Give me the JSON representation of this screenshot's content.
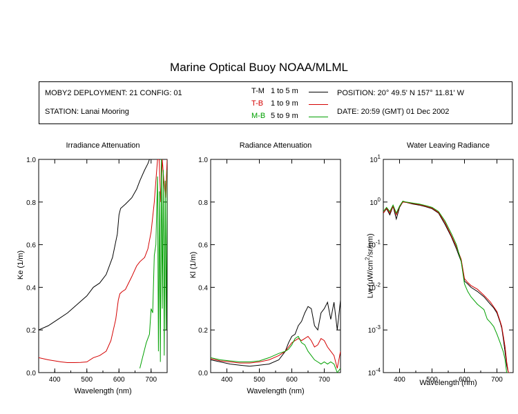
{
  "title": "Marine Optical Buoy NOAA/MLML",
  "info": {
    "deployment": "MOBY2 DEPLOYMENT: 21 CONFIG: 01",
    "station": "STATION: Lanai Mooring",
    "position": "POSITION: 20° 49.5' N  157° 11.81' W",
    "date": "DATE: 20:59 (GMT) 01 Dec 2002"
  },
  "legend": [
    {
      "code": "T-M",
      "range": "1 to 5  m",
      "color": "#000000"
    },
    {
      "code": "T-B",
      "range": "1 to 9  m",
      "color": "#d40000"
    },
    {
      "code": "M-B",
      "range": "5 to 9  m",
      "color": "#00a000"
    }
  ],
  "chart_data": [
    {
      "type": "line",
      "title": "Irradiance Attenuation",
      "xlabel": "Wavelength (nm)",
      "ylabel": "Ke  (1/m)",
      "xlim": [
        350,
        750
      ],
      "ylim": [
        0,
        1
      ],
      "xticks": [
        "400",
        "500",
        "600",
        "700"
      ],
      "yticks": [
        "0.0",
        "0.2",
        "0.4",
        "0.6",
        "0.8",
        "1.0"
      ],
      "series": [
        {
          "name": "T-M",
          "color": "#000000",
          "x": [
            350,
            380,
            410,
            440,
            470,
            500,
            520,
            540,
            560,
            580,
            595,
            600,
            605,
            620,
            640,
            655,
            665,
            680,
            690,
            695,
            700
          ],
          "y": [
            0.2,
            0.22,
            0.25,
            0.28,
            0.32,
            0.36,
            0.4,
            0.42,
            0.46,
            0.54,
            0.65,
            0.74,
            0.77,
            0.79,
            0.82,
            0.86,
            0.9,
            0.95,
            0.98,
            1.0,
            1.0
          ]
        },
        {
          "name": "T-B",
          "color": "#d40000",
          "x": [
            350,
            380,
            400,
            420,
            440,
            460,
            480,
            500,
            520,
            540,
            560,
            575,
            590,
            598,
            603,
            610,
            620,
            640,
            655,
            665,
            680,
            690,
            700,
            710,
            715,
            720,
            725,
            730,
            735,
            740,
            745,
            750
          ],
          "y": [
            0.07,
            0.06,
            0.055,
            0.05,
            0.047,
            0.047,
            0.048,
            0.05,
            0.07,
            0.08,
            0.1,
            0.15,
            0.25,
            0.34,
            0.37,
            0.38,
            0.39,
            0.45,
            0.5,
            0.52,
            0.54,
            0.58,
            0.66,
            0.8,
            0.9,
            1.0,
            1.0,
            0.8,
            1.0,
            0.9,
            0.82,
            1.0
          ]
        },
        {
          "name": "M-B",
          "color": "#00a000",
          "x": [
            665,
            675,
            685,
            695,
            700,
            705,
            710,
            715,
            720,
            723,
            726,
            729,
            732,
            735,
            738,
            741,
            744,
            747,
            750
          ],
          "y": [
            0.02,
            0.08,
            0.14,
            0.18,
            0.3,
            0.28,
            0.55,
            0.6,
            0.92,
            0.1,
            0.85,
            0.05,
            1.0,
            0.3,
            0.95,
            0.08,
            0.9,
            0.2,
            0.95
          ]
        }
      ]
    },
    {
      "type": "line",
      "title": "Radiance Attenuation",
      "xlabel": "Wavelength (nm)",
      "ylabel": "Kl  (1/m)",
      "xlim": [
        350,
        750
      ],
      "ylim": [
        0,
        1
      ],
      "xticks": [
        "400",
        "500",
        "600",
        "700"
      ],
      "yticks": [
        "0.0",
        "0.2",
        "0.4",
        "0.6",
        "0.8",
        "1.0"
      ],
      "series": [
        {
          "name": "T-M",
          "color": "#000000",
          "x": [
            350,
            380,
            410,
            440,
            470,
            500,
            530,
            560,
            580,
            590,
            600,
            610,
            620,
            630,
            640,
            650,
            660,
            670,
            680,
            690,
            700,
            710,
            720,
            730,
            740,
            750
          ],
          "y": [
            0.06,
            0.05,
            0.04,
            0.035,
            0.03,
            0.035,
            0.04,
            0.06,
            0.1,
            0.14,
            0.17,
            0.18,
            0.22,
            0.24,
            0.28,
            0.31,
            0.3,
            0.22,
            0.2,
            0.28,
            0.3,
            0.33,
            0.25,
            0.33,
            0.2,
            0.34
          ]
        },
        {
          "name": "T-B",
          "color": "#d40000",
          "x": [
            350,
            380,
            410,
            440,
            470,
            500,
            530,
            560,
            580,
            590,
            600,
            610,
            620,
            630,
            640,
            650,
            660,
            670,
            680,
            690,
            700,
            710,
            720,
            730,
            740,
            750
          ],
          "y": [
            0.065,
            0.055,
            0.05,
            0.045,
            0.045,
            0.05,
            0.06,
            0.08,
            0.1,
            0.12,
            0.14,
            0.15,
            0.16,
            0.15,
            0.16,
            0.17,
            0.15,
            0.12,
            0.13,
            0.16,
            0.15,
            0.12,
            0.1,
            0.08,
            0.02,
            0.1
          ]
        },
        {
          "name": "M-B",
          "color": "#00a000",
          "x": [
            350,
            380,
            410,
            440,
            470,
            500,
            530,
            560,
            580,
            590,
            600,
            610,
            620,
            630,
            640,
            650,
            660,
            670,
            680,
            690,
            700,
            710,
            720,
            730,
            740,
            750
          ],
          "y": [
            0.07,
            0.06,
            0.055,
            0.05,
            0.05,
            0.055,
            0.07,
            0.09,
            0.1,
            0.11,
            0.13,
            0.16,
            0.17,
            0.14,
            0.13,
            0.1,
            0.08,
            0.06,
            0.05,
            0.04,
            0.05,
            0.04,
            0.05,
            0.04,
            0.0,
            0.02
          ]
        }
      ]
    },
    {
      "type": "line",
      "title": "Water Leaving Radiance",
      "xlabel": "Wavelength (nm)",
      "ylabel": "Lw  (μW/cm²/sr/nm)",
      "yscale": "log",
      "xlim": [
        350,
        750
      ],
      "ylim": [
        0.0001,
        10
      ],
      "xticks": [
        "400",
        "500",
        "600",
        "700"
      ],
      "yticks": [
        "10^-4",
        "10^-3",
        "10^-2",
        "10^-1",
        "10^0",
        "10^1"
      ],
      "series": [
        {
          "name": "T-M",
          "color": "#000000",
          "x": [
            350,
            360,
            370,
            380,
            390,
            400,
            410,
            420,
            440,
            460,
            480,
            500,
            520,
            540,
            560,
            575,
            590,
            600,
            610,
            620,
            640,
            660,
            680,
            690,
            700,
            710,
            715,
            720,
            725,
            730,
            735,
            740
          ],
          "y": [
            0.55,
            0.7,
            0.5,
            0.8,
            0.4,
            0.75,
            1.0,
            0.98,
            0.9,
            0.85,
            0.78,
            0.7,
            0.55,
            0.3,
            0.15,
            0.08,
            0.04,
            0.014,
            0.012,
            0.01,
            0.008,
            0.006,
            0.004,
            0.0033,
            0.0025,
            0.0015,
            0.0011,
            0.0006,
            0.0003,
            0.00015,
            0.0001,
            0.0001
          ]
        },
        {
          "name": "T-B",
          "color": "#d40000",
          "x": [
            350,
            360,
            370,
            380,
            390,
            400,
            410,
            420,
            440,
            460,
            480,
            500,
            520,
            540,
            560,
            575,
            590,
            600,
            610,
            620,
            640,
            660,
            680,
            690,
            700,
            710,
            715,
            720,
            725,
            730,
            735,
            740
          ],
          "y": [
            0.55,
            0.72,
            0.55,
            0.8,
            0.5,
            0.78,
            1.0,
            0.98,
            0.92,
            0.87,
            0.8,
            0.72,
            0.57,
            0.33,
            0.16,
            0.09,
            0.045,
            0.016,
            0.013,
            0.011,
            0.009,
            0.0065,
            0.0045,
            0.0035,
            0.0027,
            0.0016,
            0.0012,
            0.0007,
            0.0004,
            0.00018,
            0.0001,
            0.0001
          ]
        },
        {
          "name": "M-B",
          "color": "#00a000",
          "x": [
            350,
            360,
            370,
            380,
            390,
            400,
            410,
            420,
            440,
            460,
            480,
            500,
            520,
            540,
            560,
            575,
            590,
            600,
            610,
            620,
            640,
            660,
            670,
            680,
            690,
            700,
            710,
            720,
            725,
            730,
            735
          ],
          "y": [
            0.6,
            0.75,
            0.6,
            0.85,
            0.55,
            0.8,
            1.05,
            1.0,
            0.95,
            0.9,
            0.83,
            0.75,
            0.6,
            0.36,
            0.18,
            0.1,
            0.04,
            0.012,
            0.008,
            0.006,
            0.004,
            0.003,
            0.0018,
            0.0015,
            0.0012,
            0.0008,
            0.0005,
            0.0003,
            0.0002,
            0.0001,
            0.0001
          ]
        }
      ]
    }
  ]
}
